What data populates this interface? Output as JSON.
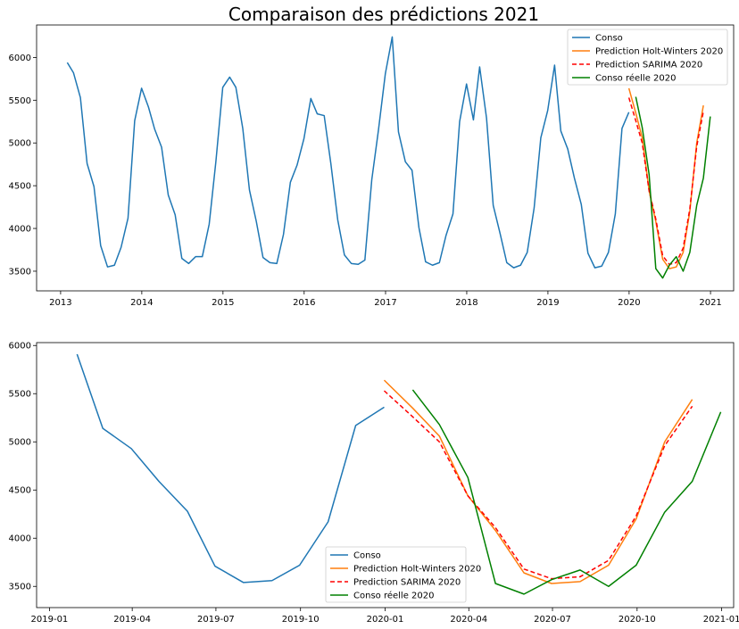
{
  "title": "Comparaison des prédictions 2021",
  "colors": {
    "conso": "#1f77b4",
    "holt_winters": "#ff7f0e",
    "sarima": "#ff0000",
    "reelle": "#008000"
  },
  "chart_data": [
    {
      "type": "line",
      "title": "Comparaison des prédictions 2021",
      "xlim": [
        "2012-09-15",
        "2021-04-15"
      ],
      "ylim": [
        3270,
        6380
      ],
      "x_ticks": [
        {
          "date": "2013-01-01",
          "label": "2013"
        },
        {
          "date": "2014-01-01",
          "label": "2014"
        },
        {
          "date": "2015-01-01",
          "label": "2015"
        },
        {
          "date": "2016-01-01",
          "label": "2016"
        },
        {
          "date": "2017-01-01",
          "label": "2017"
        },
        {
          "date": "2018-01-01",
          "label": "2018"
        },
        {
          "date": "2019-01-01",
          "label": "2019"
        },
        {
          "date": "2020-01-01",
          "label": "2020"
        },
        {
          "date": "2021-01-01",
          "label": "2021"
        }
      ],
      "y_ticks": [
        3500,
        4000,
        4500,
        5000,
        5500,
        6000
      ],
      "legend_position": "top-right",
      "series": [
        {
          "name": "Conso",
          "color": "#1f77b4",
          "dash": "solid",
          "data": [
            [
              "2013-01-31",
              5940
            ],
            [
              "2013-02-28",
              5820
            ],
            [
              "2013-03-31",
              5530
            ],
            [
              "2013-04-30",
              4760
            ],
            [
              "2013-05-31",
              4490
            ],
            [
              "2013-06-30",
              3800
            ],
            [
              "2013-07-31",
              3550
            ],
            [
              "2013-08-31",
              3570
            ],
            [
              "2013-09-30",
              3780
            ],
            [
              "2013-10-31",
              4120
            ],
            [
              "2013-11-30",
              5260
            ],
            [
              "2013-12-31",
              5640
            ],
            [
              "2014-01-31",
              5420
            ],
            [
              "2014-02-28",
              5160
            ],
            [
              "2014-03-31",
              4950
            ],
            [
              "2014-04-30",
              4390
            ],
            [
              "2014-05-31",
              4160
            ],
            [
              "2014-06-30",
              3650
            ],
            [
              "2014-07-31",
              3590
            ],
            [
              "2014-08-31",
              3670
            ],
            [
              "2014-09-30",
              3670
            ],
            [
              "2014-10-31",
              4050
            ],
            [
              "2014-11-30",
              4780
            ],
            [
              "2014-12-31",
              5650
            ],
            [
              "2015-01-31",
              5770
            ],
            [
              "2015-02-28",
              5650
            ],
            [
              "2015-03-31",
              5170
            ],
            [
              "2015-04-30",
              4450
            ],
            [
              "2015-05-31",
              4080
            ],
            [
              "2015-06-30",
              3660
            ],
            [
              "2015-07-31",
              3600
            ],
            [
              "2015-08-31",
              3590
            ],
            [
              "2015-09-30",
              3930
            ],
            [
              "2015-10-31",
              4540
            ],
            [
              "2015-11-30",
              4740
            ],
            [
              "2015-12-31",
              5050
            ],
            [
              "2016-01-31",
              5520
            ],
            [
              "2016-02-29",
              5340
            ],
            [
              "2016-03-31",
              5320
            ],
            [
              "2016-04-30",
              4760
            ],
            [
              "2016-05-31",
              4100
            ],
            [
              "2016-06-30",
              3690
            ],
            [
              "2016-07-31",
              3590
            ],
            [
              "2016-08-31",
              3580
            ],
            [
              "2016-09-30",
              3630
            ],
            [
              "2016-10-31",
              4570
            ],
            [
              "2016-11-30",
              5150
            ],
            [
              "2016-12-31",
              5810
            ],
            [
              "2017-01-31",
              6240
            ],
            [
              "2017-02-28",
              5130
            ],
            [
              "2017-03-31",
              4780
            ],
            [
              "2017-04-30",
              4680
            ],
            [
              "2017-05-31",
              4010
            ],
            [
              "2017-06-30",
              3610
            ],
            [
              "2017-07-31",
              3570
            ],
            [
              "2017-08-31",
              3600
            ],
            [
              "2017-09-30",
              3920
            ],
            [
              "2017-10-31",
              4170
            ],
            [
              "2017-11-30",
              5250
            ],
            [
              "2017-12-31",
              5690
            ],
            [
              "2018-01-31",
              5270
            ],
            [
              "2018-02-28",
              5890
            ],
            [
              "2018-03-31",
              5290
            ],
            [
              "2018-04-30",
              4270
            ],
            [
              "2018-05-31",
              3940
            ],
            [
              "2018-06-30",
              3600
            ],
            [
              "2018-07-31",
              3540
            ],
            [
              "2018-08-31",
              3570
            ],
            [
              "2018-09-30",
              3720
            ],
            [
              "2018-10-31",
              4240
            ],
            [
              "2018-11-30",
              5060
            ],
            [
              "2018-12-31",
              5380
            ],
            [
              "2019-01-31",
              5910
            ],
            [
              "2019-02-28",
              5140
            ],
            [
              "2019-03-31",
              4930
            ],
            [
              "2019-04-30",
              4590
            ],
            [
              "2019-05-31",
              4280
            ],
            [
              "2019-06-30",
              3710
            ],
            [
              "2019-07-31",
              3540
            ],
            [
              "2019-08-31",
              3560
            ],
            [
              "2019-09-30",
              3720
            ],
            [
              "2019-10-31",
              4170
            ],
            [
              "2019-11-30",
              5170
            ],
            [
              "2019-12-31",
              5360
            ]
          ]
        },
        {
          "name": "Prediction Holt-Winters 2020",
          "color": "#ff7f0e",
          "dash": "solid",
          "data": [
            [
              "2019-12-31",
              5640
            ],
            [
              "2020-01-31",
              5350
            ],
            [
              "2020-02-29",
              5060
            ],
            [
              "2020-03-31",
              4440
            ],
            [
              "2020-04-30",
              4080
            ],
            [
              "2020-05-31",
              3640
            ],
            [
              "2020-06-30",
              3530
            ],
            [
              "2020-07-31",
              3550
            ],
            [
              "2020-08-31",
              3720
            ],
            [
              "2020-09-30",
              4200
            ],
            [
              "2020-10-31",
              5000
            ],
            [
              "2020-11-30",
              5440
            ]
          ]
        },
        {
          "name": "Prediction SARIMA 2020",
          "color": "#ff0000",
          "dash": "dashed",
          "data": [
            [
              "2019-12-31",
              5530
            ],
            [
              "2020-01-31",
              5260
            ],
            [
              "2020-02-29",
              5000
            ],
            [
              "2020-03-31",
              4440
            ],
            [
              "2020-04-30",
              4110
            ],
            [
              "2020-05-31",
              3680
            ],
            [
              "2020-06-30",
              3580
            ],
            [
              "2020-07-31",
              3600
            ],
            [
              "2020-08-31",
              3770
            ],
            [
              "2020-09-30",
              4230
            ],
            [
              "2020-10-31",
              4960
            ],
            [
              "2020-11-30",
              5370
            ]
          ]
        },
        {
          "name": "Conso réelle 2020",
          "color": "#008000",
          "dash": "solid",
          "data": [
            [
              "2020-01-31",
              5540
            ],
            [
              "2020-02-29",
              5180
            ],
            [
              "2020-03-31",
              4630
            ],
            [
              "2020-04-30",
              3530
            ],
            [
              "2020-05-31",
              3420
            ],
            [
              "2020-06-30",
              3570
            ],
            [
              "2020-07-31",
              3670
            ],
            [
              "2020-08-31",
              3500
            ],
            [
              "2020-09-30",
              3720
            ],
            [
              "2020-10-31",
              4270
            ],
            [
              "2020-11-30",
              4590
            ],
            [
              "2020-12-31",
              5310
            ]
          ]
        }
      ]
    },
    {
      "type": "line",
      "title": "",
      "xlim": [
        "2018-12-18",
        "2021-01-14"
      ],
      "ylim": [
        3280,
        6030
      ],
      "x_ticks": [
        {
          "date": "2019-01-01",
          "label": "2019-01"
        },
        {
          "date": "2019-04-01",
          "label": "2019-04"
        },
        {
          "date": "2019-07-01",
          "label": "2019-07"
        },
        {
          "date": "2019-10-01",
          "label": "2019-10"
        },
        {
          "date": "2020-01-01",
          "label": "2020-01"
        },
        {
          "date": "2020-04-01",
          "label": "2020-04"
        },
        {
          "date": "2020-07-01",
          "label": "2020-07"
        },
        {
          "date": "2020-10-01",
          "label": "2020-10"
        },
        {
          "date": "2021-01-01",
          "label": "2021-01"
        }
      ],
      "y_ticks": [
        3500,
        4000,
        4500,
        5000,
        5500,
        6000
      ],
      "legend_position": "bottom-center",
      "series": [
        {
          "name": "Conso",
          "color": "#1f77b4",
          "dash": "solid",
          "data": [
            [
              "2019-01-31",
              5910
            ],
            [
              "2019-02-28",
              5140
            ],
            [
              "2019-03-31",
              4930
            ],
            [
              "2019-04-30",
              4590
            ],
            [
              "2019-05-31",
              4280
            ],
            [
              "2019-06-30",
              3710
            ],
            [
              "2019-07-31",
              3540
            ],
            [
              "2019-08-31",
              3560
            ],
            [
              "2019-09-30",
              3720
            ],
            [
              "2019-10-31",
              4170
            ],
            [
              "2019-11-30",
              5170
            ],
            [
              "2019-12-31",
              5360
            ]
          ]
        },
        {
          "name": "Prediction Holt-Winters 2020",
          "color": "#ff7f0e",
          "dash": "solid",
          "data": [
            [
              "2019-12-31",
              5640
            ],
            [
              "2020-01-31",
              5350
            ],
            [
              "2020-02-29",
              5060
            ],
            [
              "2020-03-31",
              4440
            ],
            [
              "2020-04-30",
              4080
            ],
            [
              "2020-05-31",
              3640
            ],
            [
              "2020-06-30",
              3530
            ],
            [
              "2020-07-31",
              3550
            ],
            [
              "2020-08-31",
              3720
            ],
            [
              "2020-09-30",
              4200
            ],
            [
              "2020-10-31",
              5000
            ],
            [
              "2020-11-30",
              5440
            ]
          ]
        },
        {
          "name": "Prediction SARIMA 2020",
          "color": "#ff0000",
          "dash": "dashed",
          "data": [
            [
              "2019-12-31",
              5530
            ],
            [
              "2020-01-31",
              5260
            ],
            [
              "2020-02-29",
              5000
            ],
            [
              "2020-03-31",
              4440
            ],
            [
              "2020-04-30",
              4110
            ],
            [
              "2020-05-31",
              3680
            ],
            [
              "2020-06-30",
              3580
            ],
            [
              "2020-07-31",
              3600
            ],
            [
              "2020-08-31",
              3770
            ],
            [
              "2020-09-30",
              4230
            ],
            [
              "2020-10-31",
              4960
            ],
            [
              "2020-11-30",
              5370
            ]
          ]
        },
        {
          "name": "Conso réelle 2020",
          "color": "#008000",
          "dash": "solid",
          "data": [
            [
              "2020-01-31",
              5540
            ],
            [
              "2020-02-29",
              5180
            ],
            [
              "2020-03-31",
              4630
            ],
            [
              "2020-04-30",
              3530
            ],
            [
              "2020-05-31",
              3420
            ],
            [
              "2020-06-30",
              3570
            ],
            [
              "2020-07-31",
              3670
            ],
            [
              "2020-08-31",
              3500
            ],
            [
              "2020-09-30",
              3720
            ],
            [
              "2020-10-31",
              4270
            ],
            [
              "2020-11-30",
              4590
            ],
            [
              "2020-12-31",
              5310
            ]
          ]
        }
      ]
    }
  ]
}
